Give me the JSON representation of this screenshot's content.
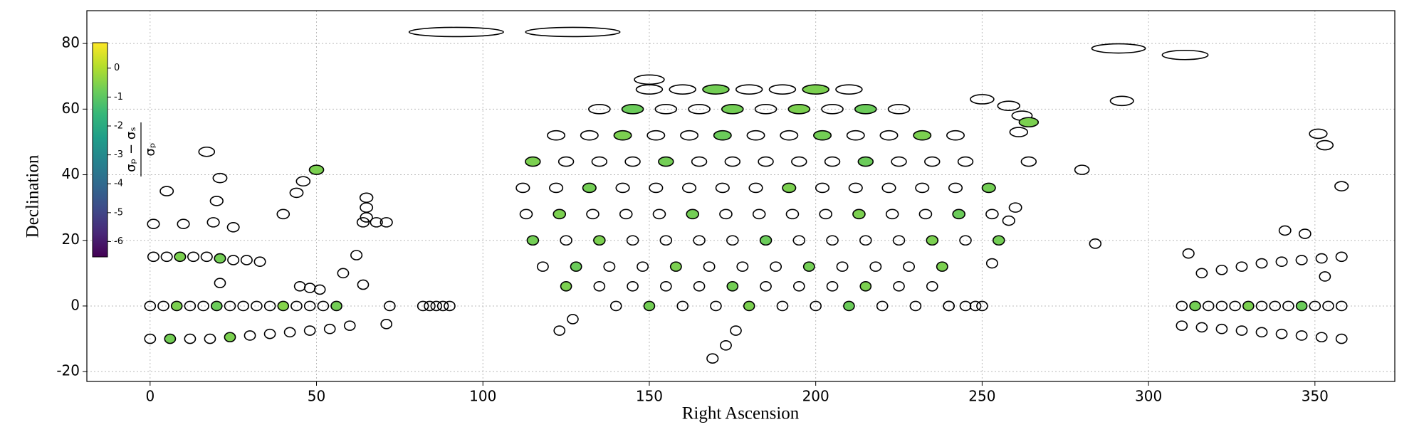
{
  "chart_data": {
    "type": "scatter",
    "x_label": "Right Ascension",
    "y_label": "Declination",
    "xlim": [
      -19,
      374
    ],
    "ylim": [
      -23,
      90
    ],
    "xticks": [
      0,
      50,
      100,
      150,
      200,
      250,
      300,
      350
    ],
    "yticks": [
      -20,
      0,
      20,
      40,
      60,
      80
    ],
    "grid": true,
    "colormap": "viridis",
    "clim": [
      -6.53,
      0.88
    ],
    "cticks": [
      -6,
      -5,
      -4,
      -3,
      -2,
      -1,
      0
    ],
    "colorbar_label_num": "σₚ − σₛ",
    "colorbar_label_den": "σₚ",
    "series": [
      {
        "x": [
          140,
          150,
          160,
          170,
          180,
          190,
          200,
          210,
          220,
          230,
          240,
          250
        ],
        "y": [
          0,
          0,
          0,
          0,
          0,
          0,
          0,
          0,
          0,
          0,
          0,
          0
        ],
        "c": [
          null,
          -0.7,
          null,
          null,
          -0.6,
          null,
          null,
          -0.8,
          null,
          null,
          null,
          null
        ]
      },
      {
        "x": [
          125,
          135,
          145,
          155,
          165,
          175,
          185,
          195,
          205,
          215,
          225,
          235
        ],
        "y": [
          6,
          6,
          6,
          6,
          6,
          6,
          6,
          6,
          6,
          6,
          6,
          6
        ],
        "c": [
          -0.6,
          null,
          null,
          null,
          null,
          -0.7,
          null,
          null,
          null,
          -0.6,
          null,
          null
        ]
      },
      {
        "x": [
          118,
          128,
          138,
          148,
          158,
          168,
          178,
          188,
          198,
          208,
          218,
          228,
          238
        ],
        "y": [
          12,
          12,
          12,
          12,
          12,
          12,
          12,
          12,
          12,
          12,
          12,
          12,
          12
        ],
        "c": [
          null,
          -0.8,
          null,
          null,
          -0.6,
          null,
          null,
          null,
          -0.7,
          null,
          null,
          null,
          -0.6
        ]
      },
      {
        "x": [
          115,
          125,
          135,
          145,
          155,
          165,
          175,
          185,
          195,
          205,
          215,
          225,
          235,
          245,
          255
        ],
        "y": [
          20,
          20,
          20,
          20,
          20,
          20,
          20,
          20,
          20,
          20,
          20,
          20,
          20,
          20,
          20
        ],
        "c": [
          -0.7,
          null,
          -0.6,
          null,
          null,
          null,
          null,
          -0.8,
          null,
          null,
          null,
          null,
          -0.6,
          null,
          -0.7
        ]
      },
      {
        "x": [
          113,
          123,
          133,
          143,
          153,
          163,
          173,
          183,
          193,
          203,
          213,
          223,
          233,
          243,
          253
        ],
        "y": [
          28,
          28,
          28,
          28,
          28,
          28,
          28,
          28,
          28,
          28,
          28,
          28,
          28,
          28,
          28
        ],
        "c": [
          null,
          -0.6,
          null,
          null,
          null,
          -0.7,
          null,
          null,
          null,
          null,
          -0.6,
          null,
          null,
          -0.8,
          null
        ]
      },
      {
        "x": [
          112,
          122,
          132,
          142,
          152,
          162,
          172,
          182,
          192,
          202,
          212,
          222,
          232,
          242,
          252
        ],
        "y": [
          36,
          36,
          36,
          36,
          36,
          36,
          36,
          36,
          36,
          36,
          36,
          36,
          36,
          36,
          36
        ],
        "c": [
          null,
          null,
          -0.7,
          null,
          null,
          null,
          null,
          null,
          -0.6,
          null,
          null,
          null,
          null,
          null,
          -0.7
        ]
      },
      {
        "x": [
          115,
          125,
          135,
          145,
          155,
          165,
          175,
          185,
          195,
          205,
          215,
          225,
          235,
          245
        ],
        "y": [
          44,
          44,
          44,
          44,
          44,
          44,
          44,
          44,
          44,
          44,
          44,
          44,
          44,
          44
        ],
        "c": [
          -0.6,
          null,
          null,
          null,
          -0.7,
          null,
          null,
          null,
          null,
          null,
          -0.8,
          null,
          null,
          null
        ]
      },
      {
        "x": [
          122,
          132,
          142,
          152,
          162,
          172,
          182,
          192,
          202,
          212,
          222,
          232,
          242
        ],
        "y": [
          52,
          52,
          52,
          52,
          52,
          52,
          52,
          52,
          52,
          52,
          52,
          52,
          52
        ],
        "c": [
          null,
          null,
          -0.6,
          null,
          null,
          -0.8,
          null,
          null,
          -0.7,
          null,
          null,
          -0.6,
          null
        ]
      },
      {
        "x": [
          135,
          145,
          155,
          165,
          175,
          185,
          195,
          205,
          215,
          225
        ],
        "y": [
          60,
          60,
          60,
          60,
          60,
          60,
          60,
          60,
          60,
          60
        ],
        "c": [
          null,
          -0.8,
          null,
          null,
          -0.7,
          null,
          -0.6,
          null,
          -0.8,
          null
        ]
      },
      {
        "x": [
          150,
          160,
          170,
          180,
          190,
          200,
          210
        ],
        "y": [
          66,
          66,
          66,
          66,
          66,
          66,
          66
        ],
        "c": [
          null,
          null,
          -0.7,
          null,
          null,
          -0.6,
          null
        ]
      },
      {
        "x": [
          0,
          4,
          8,
          12,
          16,
          20,
          24,
          28,
          32,
          36,
          40,
          44,
          48,
          52,
          56
        ],
        "y": [
          0,
          0,
          0,
          0,
          0,
          0,
          0,
          0,
          0,
          0,
          0,
          0,
          0,
          0,
          0
        ],
        "c": [
          null,
          null,
          -0.6,
          null,
          null,
          -0.8,
          null,
          null,
          null,
          null,
          -0.5,
          null,
          null,
          null,
          -0.7
        ]
      },
      {
        "x": [
          310,
          314,
          318,
          322,
          326,
          330,
          334,
          338,
          342,
          346,
          350,
          354,
          358
        ],
        "y": [
          0,
          0,
          0,
          0,
          0,
          0,
          0,
          0,
          0,
          0,
          0,
          0,
          0
        ],
        "c": [
          null,
          -0.7,
          null,
          null,
          null,
          -0.6,
          null,
          null,
          null,
          -0.8,
          null,
          null,
          null
        ]
      },
      {
        "x": [
          1,
          5,
          9,
          13,
          17,
          21,
          25,
          29,
          33
        ],
        "y": [
          15,
          15,
          15,
          15,
          15,
          14.5,
          14,
          14,
          13.5
        ],
        "c": [
          null,
          null,
          -0.6,
          null,
          null,
          -0.7,
          null,
          null,
          null
        ]
      },
      {
        "x": [
          0,
          6,
          12,
          18,
          24,
          30,
          36,
          42,
          48,
          54,
          60
        ],
        "y": [
          -10,
          -10,
          -10,
          -10,
          -9.5,
          -9,
          -8.5,
          -8,
          -7.5,
          -7,
          -6
        ],
        "c": [
          null,
          -0.7,
          null,
          null,
          -0.6,
          null,
          null,
          null,
          null,
          null,
          null
        ]
      },
      {
        "x": [
          310,
          316,
          322,
          328,
          334,
          340,
          346,
          352,
          358
        ],
        "y": [
          -6,
          -6.5,
          -7,
          -7.5,
          -8,
          -8.5,
          -9,
          -9.5,
          -10
        ],
        "c": [
          null,
          null,
          null,
          null,
          null,
          null,
          null,
          null,
          null
        ]
      },
      {
        "x": [
          316,
          322,
          328,
          334,
          340,
          346,
          352,
          358
        ],
        "y": [
          10,
          11,
          12,
          13,
          13.5,
          14,
          14.5,
          15
        ],
        "c": [
          null,
          null,
          null,
          null,
          null,
          null,
          null,
          null
        ]
      },
      {
        "x": [
          1,
          5,
          10,
          17,
          19,
          20,
          21,
          25,
          21,
          40,
          44,
          46,
          50,
          45,
          48,
          51,
          58,
          62,
          64,
          65,
          65,
          65,
          64,
          68,
          71,
          72,
          71,
          82,
          84,
          86,
          88,
          90,
          123,
          127,
          173,
          169,
          176,
          248,
          245,
          240,
          253,
          250,
          258,
          262,
          264,
          261,
          264,
          260,
          258,
          280,
          284,
          292,
          312,
          341,
          347,
          351,
          353,
          353,
          358,
          92,
          127,
          291,
          311,
          150
        ],
        "y": [
          25,
          35,
          25,
          47,
          25.5,
          32,
          39,
          24,
          7,
          28,
          34.5,
          38,
          41.5,
          6,
          5.5,
          5,
          10,
          15.5,
          6.5,
          33,
          30,
          27,
          25.5,
          25.5,
          25.5,
          0,
          -5.5,
          0,
          0,
          0,
          0,
          0,
          -7.5,
          -4,
          -12,
          -16,
          -7.5,
          0,
          0,
          0,
          13,
          63,
          61,
          58,
          56,
          53,
          44,
          30,
          26,
          41.5,
          19,
          62.5,
          16,
          23,
          22,
          52.5,
          49,
          9,
          36.5,
          83.5,
          83.5,
          78.5,
          76.5,
          69
        ],
        "c": [
          null,
          null,
          null,
          null,
          null,
          null,
          null,
          null,
          null,
          null,
          null,
          null,
          -0.6,
          null,
          null,
          null,
          null,
          null,
          null,
          null,
          null,
          null,
          null,
          null,
          null,
          null,
          null,
          null,
          null,
          null,
          null,
          null,
          null,
          null,
          null,
          null,
          null,
          null,
          null,
          null,
          null,
          null,
          null,
          null,
          -0.6,
          null,
          null,
          null,
          null,
          null,
          null,
          null,
          null,
          null,
          null,
          null,
          null,
          null,
          null,
          null,
          null,
          null,
          null,
          null
        ]
      }
    ]
  }
}
